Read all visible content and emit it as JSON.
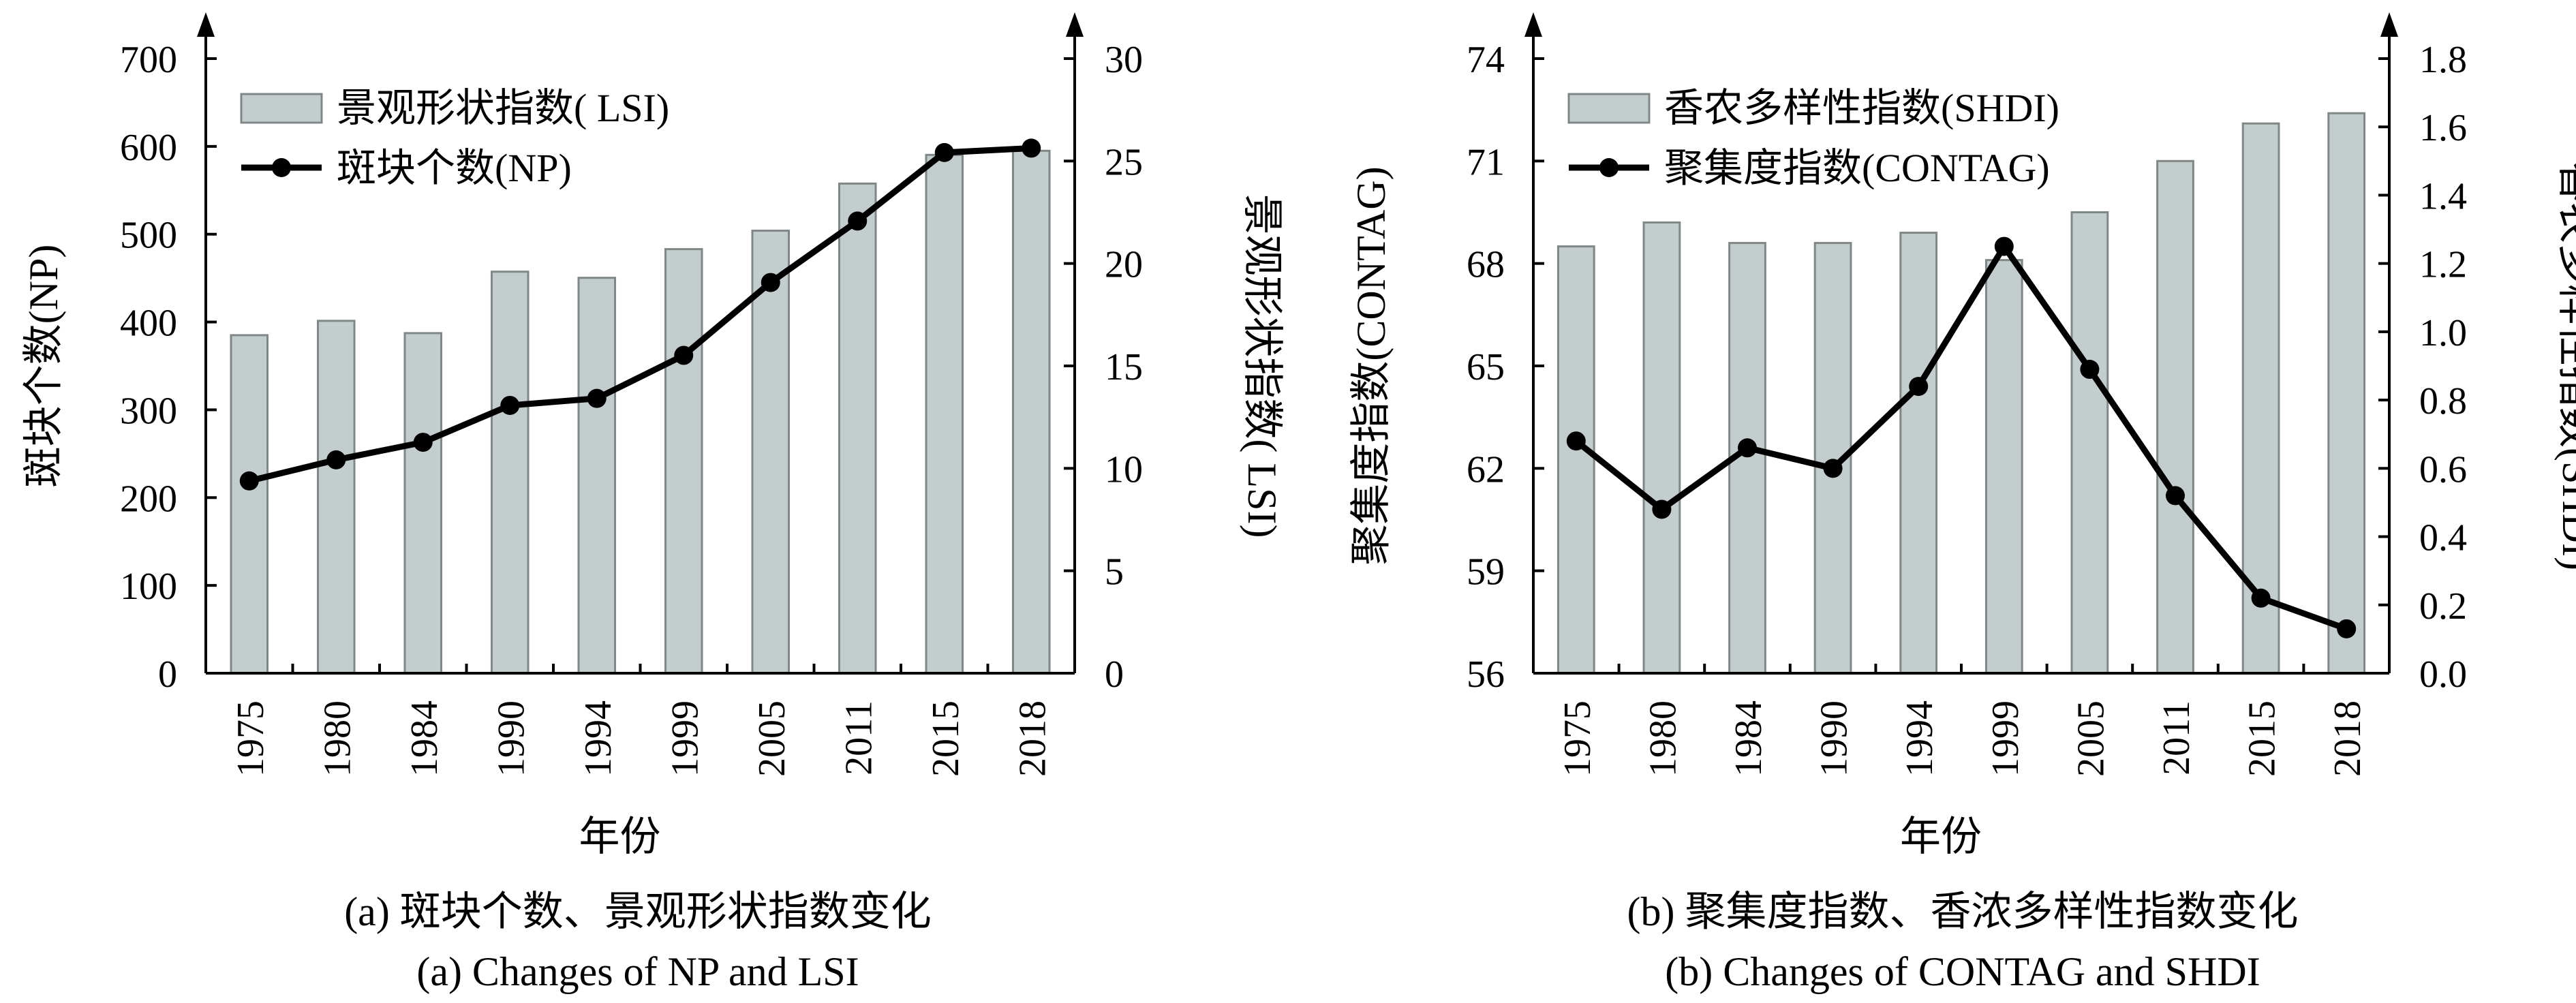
{
  "colors": {
    "bar_fill": "#c4cdcd",
    "bar_stroke": "#7f8787",
    "line": "#000000",
    "marker": "#000000"
  },
  "chart_data": [
    {
      "type": "bar+line",
      "panel_caption_zh": "(a) 斑块个数、景观形状指数变化",
      "panel_caption_en": "(a) Changes of NP and LSI",
      "xlabel": "年份",
      "ylabel_left": "斑块个数(NP)",
      "ylabel_right": "景观形状指数( LSI)",
      "categories": [
        "1975",
        "1980",
        "1984",
        "1990",
        "1994",
        "1999",
        "2005",
        "2011",
        "2015",
        "2018"
      ],
      "y_left": {
        "lim": [
          0,
          700
        ],
        "ticks": [
          "0",
          "100",
          "200",
          "300",
          "400",
          "500",
          "600",
          "700"
        ]
      },
      "y_right": {
        "lim": [
          0,
          30
        ],
        "ticks": [
          "0",
          "5",
          "10",
          "15",
          "20",
          "25",
          "30"
        ]
      },
      "legend": {
        "placement": "top-left",
        "bar_label": "景观形状指数( LSI)",
        "line_label": "斑块个数(NP)"
      },
      "series": [
        {
          "name": "景观形状指数( LSI)",
          "type": "bar",
          "axis": "right",
          "values": [
            16.5,
            17.2,
            16.6,
            19.6,
            19.3,
            20.7,
            21.6,
            23.9,
            25.3,
            25.5
          ]
        },
        {
          "name": "斑块个数(NP)",
          "type": "line",
          "axis": "left",
          "values": [
            219,
            243,
            263,
            305,
            313,
            362,
            445,
            515,
            593,
            598
          ]
        }
      ]
    },
    {
      "type": "bar+line",
      "panel_caption_zh": "(b) 聚集度指数、香浓多样性指数变化",
      "panel_caption_en": "(b) Changes of CONTAG and SHDI",
      "xlabel": "年份",
      "ylabel_left": "聚集度指数(CONTAG)",
      "ylabel_right": "香农多样性指数(SHDI)",
      "categories": [
        "1975",
        "1980",
        "1984",
        "1990",
        "1994",
        "1999",
        "2005",
        "2011",
        "2015",
        "2018"
      ],
      "y_left": {
        "lim": [
          56,
          74
        ],
        "ticks": [
          "56",
          "59",
          "62",
          "65",
          "68",
          "71",
          "74"
        ]
      },
      "y_right": {
        "lim": [
          0,
          1.8
        ],
        "ticks": [
          "0.0",
          "0.2",
          "0.4",
          "0.6",
          "0.8",
          "1.0",
          "1.2",
          "1.4",
          "1.6",
          "1.8"
        ]
      },
      "legend": {
        "placement": "top-left",
        "bar_label": "香农多样性指数(SHDI)",
        "line_label": "聚集度指数(CONTAG)"
      },
      "series": [
        {
          "name": "香农多样性指数(SHDI)",
          "type": "bar",
          "axis": "right",
          "values": [
            1.25,
            1.32,
            1.26,
            1.26,
            1.29,
            1.21,
            1.35,
            1.5,
            1.61,
            1.64
          ]
        },
        {
          "name": "聚集度指数(CONTAG)",
          "type": "line",
          "axis": "left",
          "values": [
            62.8,
            60.8,
            62.6,
            62.0,
            64.4,
            68.5,
            64.9,
            61.2,
            58.2,
            57.3
          ]
        }
      ]
    }
  ]
}
